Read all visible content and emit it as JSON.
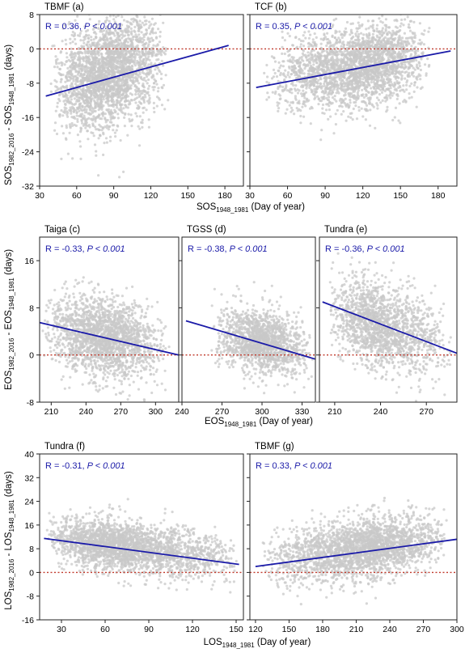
{
  "colors": {
    "points": "#c8c8c8",
    "fit": "#1a1aa8",
    "zero": "#c0392b",
    "stat_text": "#1a1aa8"
  },
  "axis_labels": {
    "row1_y": {
      "main": "SOS",
      "sub1": "1982_2016",
      "mid": " - SOS",
      "sub2": "1948_1981",
      "tail": " (days)"
    },
    "row1_x": {
      "main": "SOS",
      "sub1": "1948_1981",
      "tail": "  (Day of year)"
    },
    "row2_y": {
      "main": "EOS",
      "sub1": "1982_2016",
      "mid": " - EOS",
      "sub2": "1948_1981",
      "tail": " (days)"
    },
    "row2_x": {
      "main": "EOS",
      "sub1": "1948_1981",
      "tail": " (Day of year)"
    },
    "row3_y": {
      "main": "LOS",
      "sub1": "1982_2016",
      "mid": " - LOS",
      "sub2": "1948_1981",
      "tail": " (days)"
    },
    "row3_x": {
      "main": "LOS",
      "sub1": "1948_1981",
      "tail": " (Day of year)"
    }
  },
  "chart_data": [
    {
      "type": "scatter",
      "title": "TBMF",
      "panel": "(a)",
      "stat_r": "R = 0.36,",
      "stat_p": "P < 0.001",
      "xlim": [
        30,
        195
      ],
      "ylim": [
        -32,
        8
      ],
      "xticks": [
        30,
        60,
        90,
        120,
        150,
        180
      ],
      "yticks": [
        -32,
        -24,
        -16,
        -8,
        0,
        8
      ],
      "fit": {
        "x": [
          35,
          183
        ],
        "y": [
          -11,
          0.8
        ]
      },
      "zero_line": 0,
      "cloud": {
        "x_range": [
          38,
          135
        ],
        "x_mode": 85,
        "y_center_at_min": -10,
        "y_center_at_max": -1,
        "y_spread": 6
      }
    },
    {
      "type": "scatter",
      "title": "TCF",
      "panel": "(b)",
      "stat_r": "R = 0.35,",
      "stat_p": "P < 0.001",
      "xlim": [
        30,
        195
      ],
      "ylim": [
        -32,
        8
      ],
      "xticks": [
        30,
        60,
        90,
        120,
        150,
        180
      ],
      "yticks": [
        -32,
        -24,
        -16,
        -8,
        0,
        8
      ],
      "fit": {
        "x": [
          35,
          190
        ],
        "y": [
          -9,
          -0.5
        ]
      },
      "zero_line": 0,
      "cloud": {
        "x_range": [
          40,
          175
        ],
        "x_mode": 125,
        "y_center_at_min": -8,
        "y_center_at_max": -1.5,
        "y_spread": 4.5
      }
    },
    {
      "type": "scatter",
      "title": "Taiga",
      "panel": "(c)",
      "stat_r": "R = -0.33,",
      "stat_p": "P < 0.001",
      "xlim": [
        200,
        320
      ],
      "ylim": [
        -8,
        20
      ],
      "xticks": [
        210,
        240,
        270,
        300
      ],
      "yticks": [
        -8,
        0,
        8,
        16
      ],
      "fit": {
        "x": [
          200,
          320
        ],
        "y": [
          5.5,
          0
        ]
      },
      "zero_line": 0,
      "cloud": {
        "x_range": [
          202,
          312
        ],
        "x_mode": 255,
        "y_center_at_min": 5,
        "y_center_at_max": 1,
        "y_spread": 3.2
      }
    },
    {
      "type": "scatter",
      "title": "TGSS",
      "panel": "(d)",
      "stat_r": "R = -0.38,",
      "stat_p": "P < 0.001",
      "xlim": [
        240,
        340
      ],
      "ylim": [
        -8,
        20
      ],
      "xticks": [
        240,
        270,
        300,
        330
      ],
      "yticks": [
        -8,
        0,
        8,
        16
      ],
      "fit": {
        "x": [
          243,
          340
        ],
        "y": [
          5.8,
          -0.7
        ]
      },
      "zero_line": 0,
      "cloud": {
        "x_range": [
          262,
          338
        ],
        "x_mode": 300,
        "y_center_at_min": 4,
        "y_center_at_max": 0.5,
        "y_spread": 2.6
      }
    },
    {
      "type": "scatter",
      "title": "Tundra",
      "panel": "(e)",
      "stat_r": "R = -0.36,",
      "stat_p": "P < 0.001",
      "xlim": [
        200,
        290
      ],
      "ylim": [
        -8,
        20
      ],
      "xticks": [
        210,
        240,
        270
      ],
      "yticks": [
        -8,
        0,
        8,
        16
      ],
      "fit": {
        "x": [
          202,
          290
        ],
        "y": [
          9,
          0.3
        ]
      },
      "zero_line": 0,
      "cloud": {
        "x_range": [
          205,
          288
        ],
        "x_mode": 232,
        "y_center_at_min": 8,
        "y_center_at_max": 1,
        "y_spread": 3.5
      }
    },
    {
      "type": "scatter",
      "title": "Tundra",
      "panel": "(f)",
      "stat_r": "R = -0.31,",
      "stat_p": "P < 0.001",
      "xlim": [
        15,
        155
      ],
      "ylim": [
        -16,
        40
      ],
      "xticks": [
        30,
        60,
        90,
        120,
        150
      ],
      "yticks": [
        -16,
        -8,
        0,
        8,
        16,
        24,
        32,
        40
      ],
      "fit": {
        "x": [
          18,
          152
        ],
        "y": [
          11.5,
          2.7
        ]
      },
      "zero_line": 0,
      "cloud": {
        "x_range": [
          18,
          152
        ],
        "x_mode": 62,
        "y_center_at_min": 12,
        "y_center_at_max": 4,
        "y_spread": 4.2
      }
    },
    {
      "type": "scatter",
      "title": "TBMF",
      "panel": "(g)",
      "stat_r": "R = 0.33,",
      "stat_p": "P < 0.001",
      "xlim": [
        115,
        300
      ],
      "ylim": [
        -16,
        40
      ],
      "xticks": [
        120,
        150,
        180,
        210,
        240,
        270,
        300
      ],
      "yticks": [
        -16,
        -8,
        0,
        8,
        16,
        24,
        32,
        40
      ],
      "fit": {
        "x": [
          120,
          300
        ],
        "y": [
          2,
          11.2
        ]
      },
      "zero_line": 0,
      "cloud": {
        "x_range": [
          125,
          292
        ],
        "x_mode": 225,
        "y_center_at_min": 3,
        "y_center_at_max": 12,
        "y_spread": 5
      }
    }
  ]
}
